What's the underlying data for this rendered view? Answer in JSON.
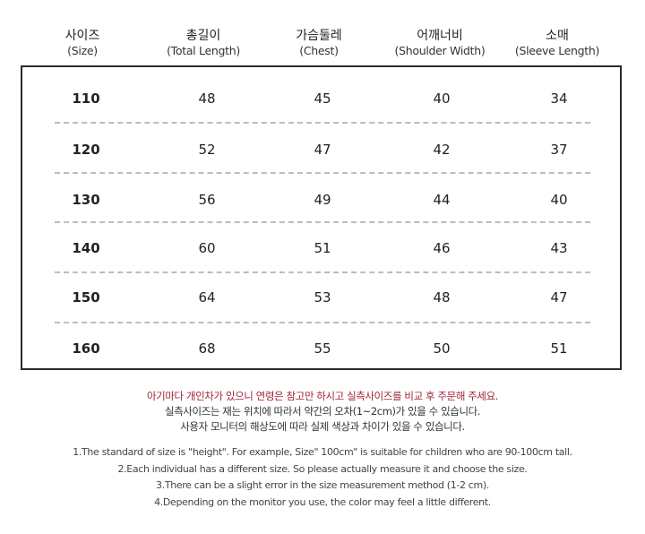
{
  "table": {
    "headers": [
      {
        "ko": "사이즈",
        "en": "(Size)"
      },
      {
        "ko": "총길이",
        "en": "(Total Length)"
      },
      {
        "ko": "가슴둘레",
        "en": "(Chest)"
      },
      {
        "ko": "어깨너비",
        "en": "(Shoulder Width)"
      },
      {
        "ko": "소매",
        "en": "(Sleeve Length)"
      }
    ],
    "rows": [
      [
        "110",
        "48",
        "45",
        "40",
        "34"
      ],
      [
        "120",
        "52",
        "47",
        "42",
        "37"
      ],
      [
        "130",
        "56",
        "49",
        "44",
        "40"
      ],
      [
        "140",
        "60",
        "51",
        "46",
        "43"
      ],
      [
        "150",
        "64",
        "53",
        "48",
        "47"
      ],
      [
        "160",
        "68",
        "55",
        "50",
        "51"
      ]
    ]
  },
  "notes_ko": {
    "line1": "아기마다 개인차가 있으니 연령은 참고만 하시고 실측사이즈를 비교 후 주문해 주세요.",
    "line2": "실측사이즈는 재는 위치에 따라서 약간의  오차(1~2cm)가 있을 수 있습니다.",
    "line3": "사용자 모니터의 해상도에 따라 실제 색상과 차이가 있을 수 있습니다."
  },
  "notes_en": [
    "1.The standard of size is \"height\". For example,  Size\" 100cm\" is suitable for children who are 90-100cm tall.",
    "2.Each individual has a different size. So please actually measure it and choose the size.",
    "3.There can be a slight error in the size measurement method (1-2 cm).",
    "4.Depending on the monitor you use, the color may feel a little different."
  ],
  "colors": {
    "accent_red": "#a0243b",
    "border": "#2a2a2a",
    "dash": "#bdbdbd"
  }
}
